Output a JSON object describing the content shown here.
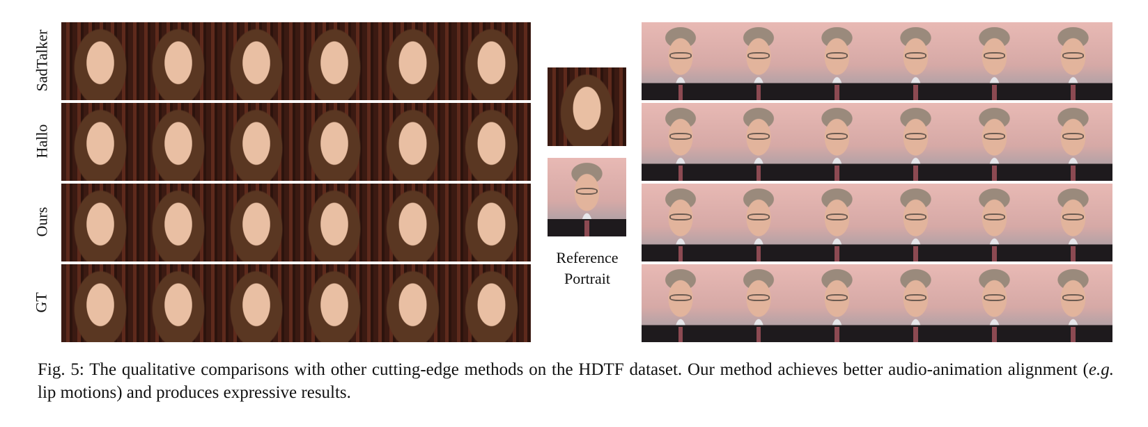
{
  "row_labels": [
    "SadTalker",
    "Hallo",
    "Ours",
    "GT"
  ],
  "reference_label_line1": "Reference",
  "reference_label_line2": "Portrait",
  "caption": {
    "lead": "Fig. 5: The qualitative comparisons with other cutting-edge methods on the HDTF dataset. Our method achieves better audio-animation alignment (",
    "eg": "e.g.",
    "tail": " lip motions) and produces expressive results."
  }
}
